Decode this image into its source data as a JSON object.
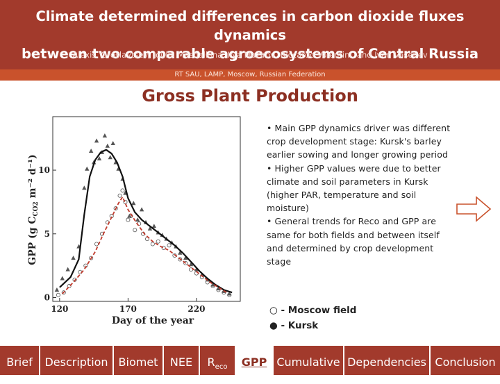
{
  "header": {
    "title_line1": "Climate determined differences in carbon dioxide fluxes dynamics",
    "title_line2": "between two comparable agroecosystems of Central Russia",
    "authors": "Alexis Yaroslavtsev, Joulia Meshalkina, Ilya Mazirov, Riccardo Valentini, and Ivan Vasenev",
    "affiliation": "RT SAU, LAMP, Moscow, Russian Federation"
  },
  "section_title": "Gross Plant Production",
  "bullets": [
    "• Main GPP dynamics driver was different crop development stage: Kursk's barley earlier sowing  and longer growing period",
    "• Higher GPP values were due to better climate and soil parameters in Kursk (higher PAR, temperature and soil moisture)",
    "• General trends for Reco and GPP are same for both fields and between itself and determined by crop development stage"
  ],
  "legend": {
    "moscow": "○ - Moscow field",
    "kursk": "● - Kursk"
  },
  "nav": {
    "items": [
      "Brief",
      "Description",
      "Biomet",
      "NEE",
      "R",
      "GPP",
      "Cumulative",
      "Dependencies",
      "Conclusion"
    ],
    "reco_subscript": "eco",
    "active": "GPP"
  },
  "colors": {
    "header_bg": "#a23a2c",
    "affiliation_bg": "#c9522c",
    "section_title": "#8c2f22",
    "moscow_curve": "#c0392b",
    "kursk_curve": "#111111"
  },
  "icons": {
    "next": "right-arrow-icon"
  },
  "chart_data": {
    "type": "scatter",
    "xlabel": "Day of the year",
    "ylabel": "GPP (g C",
    "ylabel_sub": "CO2",
    "ylabel_unit": " m⁻² d⁻¹)",
    "xticks": [
      120,
      170,
      220
    ],
    "yticks": [
      0,
      5,
      10
    ],
    "xlim": [
      115,
      252
    ],
    "ylim": [
      -0.3,
      14.2
    ],
    "series": [
      {
        "marker": "triangle",
        "points": [
          [
            118,
            0.6
          ],
          [
            122,
            1.5
          ],
          [
            126,
            2.2
          ],
          [
            130,
            3.1
          ],
          [
            134,
            4.0
          ],
          [
            138,
            8.6
          ],
          [
            140,
            10.1
          ],
          [
            143,
            11.5
          ],
          [
            145,
            10.6
          ],
          [
            147,
            12.3
          ],
          [
            149,
            10.9
          ],
          [
            151,
            11.4
          ],
          [
            153,
            12.7
          ],
          [
            155,
            11.9
          ],
          [
            157,
            11.0
          ],
          [
            159,
            12.1
          ],
          [
            161,
            10.6
          ],
          [
            163,
            10.1
          ],
          [
            166,
            9.3
          ],
          [
            168,
            8.2
          ],
          [
            171,
            6.4
          ],
          [
            174,
            7.4
          ],
          [
            177,
            6.1
          ],
          [
            180,
            6.9
          ],
          [
            183,
            5.9
          ],
          [
            186,
            5.4
          ],
          [
            189,
            5.6
          ],
          [
            192,
            5.1
          ],
          [
            195,
            4.9
          ],
          [
            198,
            4.6
          ],
          [
            202,
            4.3
          ],
          [
            205,
            4.0
          ],
          [
            208,
            3.5
          ],
          [
            212,
            3.1
          ],
          [
            216,
            2.6
          ],
          [
            220,
            2.2
          ],
          [
            224,
            1.8
          ],
          [
            228,
            1.4
          ],
          [
            232,
            1.0
          ],
          [
            236,
            0.7
          ],
          [
            240,
            0.5
          ],
          [
            244,
            0.3
          ]
        ]
      },
      {
        "marker": "circle",
        "points": [
          [
            119,
            0.2
          ],
          [
            123,
            0.4
          ],
          [
            127,
            0.9
          ],
          [
            131,
            1.4
          ],
          [
            135,
            2.0
          ],
          [
            139,
            2.5
          ],
          [
            143,
            3.1
          ],
          [
            147,
            4.2
          ],
          [
            151,
            5.0
          ],
          [
            155,
            5.9
          ],
          [
            158,
            6.4
          ],
          [
            161,
            7.0
          ],
          [
            164,
            8.0
          ],
          [
            166,
            8.4
          ],
          [
            168,
            7.5
          ],
          [
            170,
            6.1
          ],
          [
            172,
            6.4
          ],
          [
            175,
            5.3
          ],
          [
            178,
            5.8
          ],
          [
            181,
            5.0
          ],
          [
            184,
            4.6
          ],
          [
            188,
            4.2
          ],
          [
            192,
            4.4
          ],
          [
            196,
            3.9
          ],
          [
            200,
            4.1
          ],
          [
            204,
            3.3
          ],
          [
            208,
            3.0
          ],
          [
            212,
            2.7
          ],
          [
            216,
            2.2
          ],
          [
            220,
            1.9
          ],
          [
            224,
            1.6
          ],
          [
            228,
            1.2
          ],
          [
            232,
            0.9
          ],
          [
            236,
            0.6
          ],
          [
            240,
            0.4
          ],
          [
            244,
            0.2
          ]
        ]
      },
      {
        "name": "Kursk",
        "style": "line",
        "points": [
          [
            120,
            0.8
          ],
          [
            128,
            1.6
          ],
          [
            134,
            3.0
          ],
          [
            138,
            6.5
          ],
          [
            142,
            9.5
          ],
          [
            146,
            10.8
          ],
          [
            150,
            11.4
          ],
          [
            154,
            11.6
          ],
          [
            158,
            11.3
          ],
          [
            162,
            10.6
          ],
          [
            166,
            9.5
          ],
          [
            170,
            7.8
          ],
          [
            175,
            6.7
          ],
          [
            180,
            6.1
          ],
          [
            186,
            5.6
          ],
          [
            192,
            5.1
          ],
          [
            198,
            4.6
          ],
          [
            204,
            4.1
          ],
          [
            210,
            3.5
          ],
          [
            216,
            2.8
          ],
          [
            222,
            2.1
          ],
          [
            228,
            1.5
          ],
          [
            234,
            1.0
          ],
          [
            240,
            0.6
          ],
          [
            246,
            0.4
          ]
        ]
      },
      {
        "name": "Moscow field",
        "style": "dashed",
        "points": [
          [
            122,
            0.3
          ],
          [
            130,
            1.2
          ],
          [
            138,
            2.2
          ],
          [
            146,
            3.6
          ],
          [
            152,
            5.0
          ],
          [
            158,
            6.3
          ],
          [
            163,
            7.4
          ],
          [
            166,
            7.9
          ],
          [
            170,
            6.9
          ],
          [
            176,
            5.9
          ],
          [
            182,
            5.0
          ],
          [
            188,
            4.4
          ],
          [
            194,
            4.0
          ],
          [
            200,
            3.7
          ],
          [
            206,
            3.2
          ],
          [
            212,
            2.7
          ],
          [
            218,
            2.2
          ],
          [
            224,
            1.7
          ],
          [
            230,
            1.2
          ],
          [
            236,
            0.8
          ],
          [
            242,
            0.4
          ]
        ]
      }
    ]
  }
}
